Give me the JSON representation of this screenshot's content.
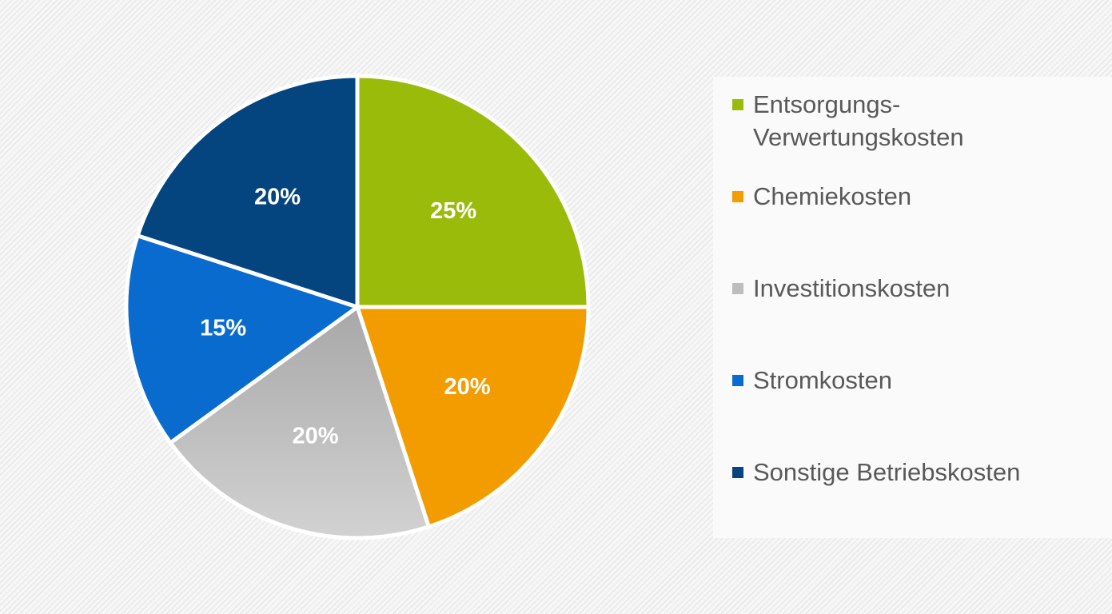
{
  "chart_data": {
    "type": "pie",
    "categories": [
      "Entsorgungs-\nVerwertungskosten",
      "Chemiekosten",
      "Investitionskosten",
      "Stromkosten",
      "Sonstige Betriebskosten"
    ],
    "values": [
      25,
      20,
      20,
      15,
      20
    ],
    "data_labels": [
      "25%",
      "20%",
      "20%",
      "15%",
      "20%"
    ],
    "colors": [
      "#9bbb0a",
      "#f39c00",
      "#bdbdbd",
      "#0a6bcf",
      "#04457f"
    ],
    "title": "",
    "legend_position": "right",
    "start_angle": "12 o'clock",
    "direction": "clockwise"
  }
}
